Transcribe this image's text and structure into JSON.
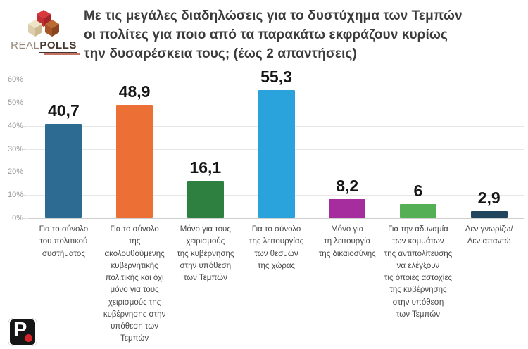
{
  "header": {
    "brand": {
      "real": "REAL",
      "polls": "POLLS"
    },
    "title_lines": [
      "Με τις μεγάλες διαδηλώσεις για το δυστύχημα των Τεμπών",
      "οι πολίτες για ποιο από τα παρακάτω εκφράζουν κυρίως",
      "την δυσαρέσκεια τους; (έως 2 απαντήσεις)"
    ]
  },
  "chart_data": {
    "type": "bar",
    "title": "Με τις μεγάλες διαδηλώσεις για το δυστύχημα των Τεμπών οι πολίτες για ποιο από τα παρακάτω εκφράζουν κυρίως την δυσαρέσκεια τους; (έως 2 απαντήσεις)",
    "categories": [
      "Για το σύνολο του πολιτικού συστήματος",
      "Για το σύνολο της ακολουθούμενης κυβερνητικής πολιτικής και όχι μόνο για τους χειρισμούς της κυβέρνησης στην υπόθεση των Τεμπών",
      "Μόνο για τους χειρισμούς της κυβέρνησης στην υπόθεση των Τεμπών",
      "Για το σύνολο της λειτουργίας των θεσμών της χώρας",
      "Μόνο για τη λειτουργία της δικαιοσύνης",
      "Για την αδυναμία των κομμάτων της αντιπολίτευσης να ελέγξουν τις όποιες αστοχίες της κυβέρνησης στην υπόθεση των Τεμπών",
      "Δεν γνωρίζω/ Δεν απαντώ"
    ],
    "categories_lines": [
      [
        "Για το σύνολο",
        "του πολιτικού",
        "συστήματος"
      ],
      [
        "Για το σύνολο",
        "της ακολουθούμενης",
        "κυβερνητικής",
        "πολιτικής και όχι",
        "μόνο για τους",
        "χειρισμούς της",
        "κυβέρνησης στην",
        "υπόθεση των Τεμπών"
      ],
      [
        "Μόνο για τους",
        "χειρισμούς",
        "της κυβέρνησης",
        "στην υπόθεση",
        "των Τεμπών"
      ],
      [
        "Για το σύνολο",
        "της λειτουργίας",
        "των θεσμών",
        "της χώρας"
      ],
      [
        "Μόνο για",
        "τη λειτουργία",
        "της δικαιοσύνης"
      ],
      [
        "Για την αδυναμία",
        "των κομμάτων",
        "της αντιπολίτευσης",
        "να ελέγξουν",
        "τις όποιες αστοχίες",
        "της κυβέρνησης",
        "στην υπόθεση",
        "των Τεμπών"
      ],
      [
        "Δεν γνωρίζω/",
        "Δεν απαντώ"
      ]
    ],
    "values": [
      40.7,
      48.9,
      16.1,
      55.3,
      8.2,
      6,
      2.9
    ],
    "value_labels": [
      "40,7",
      "48,9",
      "16,1",
      "55,3",
      "8,2",
      "6",
      "2,9"
    ],
    "bar_colors": [
      "#2e6b92",
      "#ec7036",
      "#2e8040",
      "#2aa2dc",
      "#a62d9d",
      "#55b055",
      "#20455c"
    ],
    "y_ticks": [
      "60%",
      "50%",
      "40%",
      "30%",
      "20%",
      "10%",
      "0%"
    ],
    "ylim": [
      0,
      60
    ],
    "grid": true,
    "legend": "none",
    "xlabel": "",
    "ylabel": ""
  },
  "footer": {
    "logo_letter": "P"
  }
}
